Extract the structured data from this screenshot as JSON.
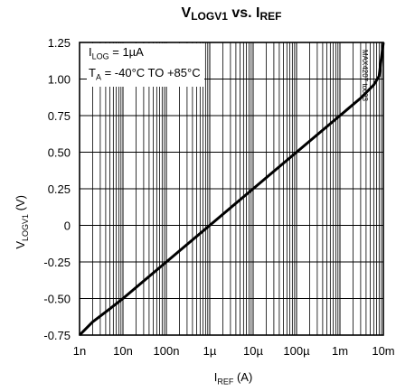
{
  "chart_data": {
    "type": "line",
    "title": {
      "main": "V",
      "main_sub": "LOGV1",
      "vs": " vs. I",
      "ref_sub": "REF"
    },
    "ylabel": {
      "main": "V",
      "sub": "LOGV1",
      "unit": " (V)"
    },
    "xlabel": {
      "main": "I",
      "sub": "REF",
      "unit": " (A)"
    },
    "x_scale": "log",
    "xlim": [
      1e-09,
      0.01
    ],
    "ylim": [
      -0.75,
      1.25
    ],
    "x_ticks": [
      {
        "value": 1e-09,
        "label": "1n"
      },
      {
        "value": 1e-08,
        "label": "10n"
      },
      {
        "value": 1e-07,
        "label": "100n"
      },
      {
        "value": 1e-06,
        "label": "1µ"
      },
      {
        "value": 1e-05,
        "label": "10µ"
      },
      {
        "value": 0.0001,
        "label": "100µ"
      },
      {
        "value": 0.001,
        "label": "1m"
      },
      {
        "value": 0.01,
        "label": "10m"
      }
    ],
    "y_ticks": [
      {
        "value": -0.75,
        "label": "-0.75"
      },
      {
        "value": -0.5,
        "label": "-0.50"
      },
      {
        "value": -0.25,
        "label": "-0.25"
      },
      {
        "value": 0,
        "label": "0"
      },
      {
        "value": 0.25,
        "label": "0.25"
      },
      {
        "value": 0.5,
        "label": "0.50"
      },
      {
        "value": 0.75,
        "label": "0.75"
      },
      {
        "value": 1.0,
        "label": "1.00"
      },
      {
        "value": 1.25,
        "label": "1.25"
      }
    ],
    "grid": true,
    "legend": {
      "placement": "top-left",
      "line1": {
        "main": "I",
        "sub": "LOG",
        "rest": " = 1µA"
      },
      "line2": {
        "main": "T",
        "sub": "A",
        "rest": " = -40°C TO +85°C"
      }
    },
    "series": [
      {
        "x": [
          1e-09,
          2e-09,
          5e-09,
          1e-08,
          3e-08,
          1e-07,
          3e-07,
          1e-06,
          3e-06,
          1e-05,
          3e-05,
          0.0001,
          0.0003,
          0.001,
          0.003,
          0.006,
          0.008,
          0.01
        ],
        "y": [
          -0.75,
          -0.66,
          -0.57,
          -0.5,
          -0.38,
          -0.25,
          -0.13,
          0.0,
          0.12,
          0.25,
          0.37,
          0.5,
          0.62,
          0.75,
          0.87,
          0.96,
          1.02,
          1.25
        ]
      }
    ],
    "color": "#000000",
    "figure_code": "MAX4207 toc03"
  }
}
